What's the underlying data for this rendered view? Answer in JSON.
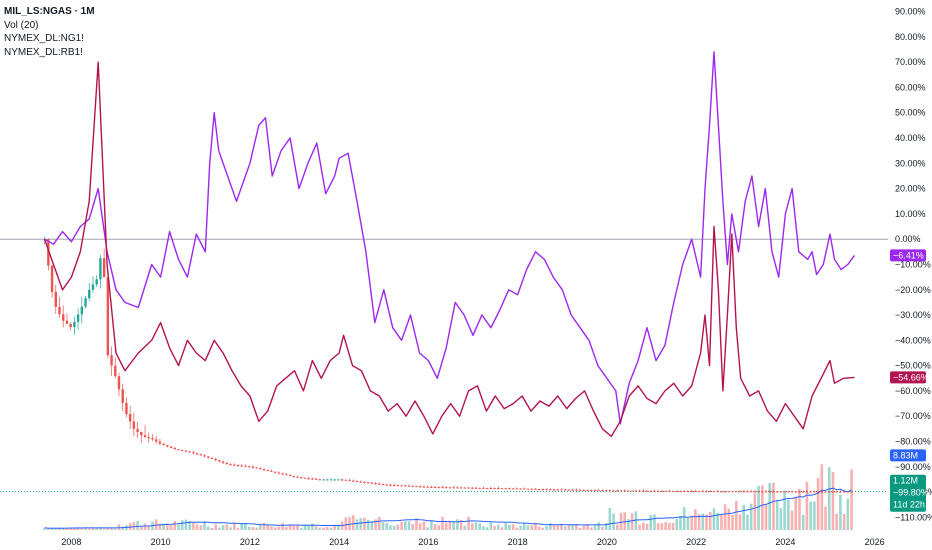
{
  "legend": {
    "symbol": "MIL_LS:NGAS · 1M",
    "volume": "Vol (20)",
    "comparisons": [
      "NYMEX_DL:NG1!",
      "NYMEX_DL:RB1!"
    ]
  },
  "colors": {
    "ng1_series": "#9c27f0",
    "rb1_series": "#b2144f",
    "candle_up": "#26a69a",
    "candle_down": "#ef5350",
    "volume_ma": "#2962ff",
    "volume_badge": "#2962ff",
    "price_badge": "#089981",
    "zero_line": "#9598a1",
    "axis_text": "#131722"
  },
  "chart_data": {
    "type": "line",
    "x_axis": {
      "range": [
        2006.4,
        2026.3
      ],
      "ticks": [
        2008,
        2010,
        2012,
        2014,
        2016,
        2018,
        2020,
        2022,
        2024,
        2026
      ]
    },
    "y_axis": {
      "unit": "%",
      "range": [
        -115,
        93
      ],
      "ticks": [
        90,
        80,
        70,
        60,
        50,
        40,
        30,
        20,
        10,
        0,
        -10,
        -20,
        -30,
        -40,
        -50,
        -60,
        -70,
        -80,
        -90,
        -100,
        -110
      ]
    },
    "tick_labels": [
      "90.00%",
      "80.00%",
      "70.00%",
      "60.00%",
      "50.00%",
      "40.00%",
      "30.00%",
      "20.00%",
      "10.00%",
      "0.00%",
      "−10.00%",
      "−20.00%",
      "−30.00%",
      "−40.00%",
      "−50.00%",
      "−60.00%",
      "−70.00%",
      "−80.00%",
      "−90.00%",
      "−100.00%",
      "−110.00%"
    ],
    "series": [
      {
        "name": "NYMEX_DL:NG1!",
        "last_label": "−6.41%",
        "points": [
          [
            2007.4,
            0
          ],
          [
            2007.6,
            -2
          ],
          [
            2007.8,
            3
          ],
          [
            2008.0,
            -1
          ],
          [
            2008.2,
            5
          ],
          [
            2008.4,
            8
          ],
          [
            2008.6,
            20
          ],
          [
            2008.8,
            -5
          ],
          [
            2009.0,
            -20
          ],
          [
            2009.2,
            -25
          ],
          [
            2009.5,
            -27
          ],
          [
            2009.8,
            -10
          ],
          [
            2010.0,
            -15
          ],
          [
            2010.2,
            3
          ],
          [
            2010.4,
            -8
          ],
          [
            2010.6,
            -15
          ],
          [
            2010.8,
            2
          ],
          [
            2011.0,
            -5
          ],
          [
            2011.1,
            30
          ],
          [
            2011.2,
            50
          ],
          [
            2011.3,
            35
          ],
          [
            2011.5,
            25
          ],
          [
            2011.7,
            15
          ],
          [
            2011.9,
            25
          ],
          [
            2012.0,
            30
          ],
          [
            2012.2,
            45
          ],
          [
            2012.35,
            48
          ],
          [
            2012.5,
            25
          ],
          [
            2012.7,
            35
          ],
          [
            2012.9,
            40
          ],
          [
            2013.1,
            20
          ],
          [
            2013.3,
            30
          ],
          [
            2013.5,
            38
          ],
          [
            2013.7,
            18
          ],
          [
            2013.9,
            25
          ],
          [
            2014.0,
            32
          ],
          [
            2014.2,
            34
          ],
          [
            2014.4,
            15
          ],
          [
            2014.6,
            -5
          ],
          [
            2014.8,
            -33
          ],
          [
            2015.0,
            -20
          ],
          [
            2015.2,
            -35
          ],
          [
            2015.4,
            -40
          ],
          [
            2015.6,
            -30
          ],
          [
            2015.8,
            -45
          ],
          [
            2016.0,
            -48
          ],
          [
            2016.2,
            -55
          ],
          [
            2016.4,
            -43
          ],
          [
            2016.6,
            -25
          ],
          [
            2016.8,
            -30
          ],
          [
            2017.0,
            -38
          ],
          [
            2017.2,
            -30
          ],
          [
            2017.4,
            -35
          ],
          [
            2017.6,
            -28
          ],
          [
            2017.8,
            -20
          ],
          [
            2018.0,
            -22
          ],
          [
            2018.2,
            -12
          ],
          [
            2018.4,
            -5
          ],
          [
            2018.6,
            -8
          ],
          [
            2018.8,
            -15
          ],
          [
            2019.0,
            -20
          ],
          [
            2019.2,
            -30
          ],
          [
            2019.4,
            -35
          ],
          [
            2019.6,
            -40
          ],
          [
            2019.8,
            -50
          ],
          [
            2020.0,
            -55
          ],
          [
            2020.2,
            -60
          ],
          [
            2020.3,
            -73
          ],
          [
            2020.5,
            -57
          ],
          [
            2020.7,
            -48
          ],
          [
            2020.9,
            -35
          ],
          [
            2021.1,
            -48
          ],
          [
            2021.3,
            -42
          ],
          [
            2021.5,
            -25
          ],
          [
            2021.7,
            -10
          ],
          [
            2021.9,
            0
          ],
          [
            2022.1,
            -15
          ],
          [
            2022.2,
            20
          ],
          [
            2022.3,
            45
          ],
          [
            2022.4,
            74
          ],
          [
            2022.5,
            45
          ],
          [
            2022.6,
            15
          ],
          [
            2022.7,
            -10
          ],
          [
            2022.8,
            10
          ],
          [
            2022.95,
            -5
          ],
          [
            2023.1,
            15
          ],
          [
            2023.25,
            25
          ],
          [
            2023.4,
            5
          ],
          [
            2023.55,
            20
          ],
          [
            2023.7,
            -5
          ],
          [
            2023.85,
            -15
          ],
          [
            2024.0,
            10
          ],
          [
            2024.15,
            20
          ],
          [
            2024.3,
            -5
          ],
          [
            2024.5,
            -8
          ],
          [
            2024.6,
            -5
          ],
          [
            2024.7,
            -14
          ],
          [
            2024.85,
            -10
          ],
          [
            2025.0,
            2
          ],
          [
            2025.1,
            -8
          ],
          [
            2025.25,
            -12
          ],
          [
            2025.4,
            -10
          ],
          [
            2025.55,
            -6.41
          ]
        ]
      },
      {
        "name": "NYMEX_DL:RB1!",
        "last_label": "−54.66%",
        "points": [
          [
            2007.4,
            0
          ],
          [
            2007.6,
            -10
          ],
          [
            2007.8,
            -20
          ],
          [
            2008.0,
            -15
          ],
          [
            2008.2,
            -5
          ],
          [
            2008.4,
            15
          ],
          [
            2008.6,
            70
          ],
          [
            2008.8,
            -10
          ],
          [
            2009.0,
            -45
          ],
          [
            2009.2,
            -52
          ],
          [
            2009.5,
            -45
          ],
          [
            2009.8,
            -40
          ],
          [
            2010.0,
            -33
          ],
          [
            2010.2,
            -43
          ],
          [
            2010.4,
            -50
          ],
          [
            2010.6,
            -40
          ],
          [
            2010.8,
            -45
          ],
          [
            2011.0,
            -48
          ],
          [
            2011.2,
            -40
          ],
          [
            2011.4,
            -45
          ],
          [
            2011.6,
            -52
          ],
          [
            2011.8,
            -58
          ],
          [
            2012.0,
            -62
          ],
          [
            2012.2,
            -72
          ],
          [
            2012.4,
            -68
          ],
          [
            2012.6,
            -58
          ],
          [
            2012.8,
            -55
          ],
          [
            2013.0,
            -52
          ],
          [
            2013.2,
            -60
          ],
          [
            2013.4,
            -48
          ],
          [
            2013.6,
            -55
          ],
          [
            2013.8,
            -48
          ],
          [
            2014.0,
            -45
          ],
          [
            2014.1,
            -38
          ],
          [
            2014.3,
            -50
          ],
          [
            2014.5,
            -52
          ],
          [
            2014.7,
            -60
          ],
          [
            2014.9,
            -62
          ],
          [
            2015.1,
            -68
          ],
          [
            2015.3,
            -65
          ],
          [
            2015.5,
            -70
          ],
          [
            2015.7,
            -64
          ],
          [
            2015.9,
            -70
          ],
          [
            2016.1,
            -77
          ],
          [
            2016.3,
            -70
          ],
          [
            2016.5,
            -65
          ],
          [
            2016.7,
            -70
          ],
          [
            2016.9,
            -60
          ],
          [
            2017.1,
            -58
          ],
          [
            2017.3,
            -68
          ],
          [
            2017.5,
            -62
          ],
          [
            2017.7,
            -67
          ],
          [
            2017.9,
            -65
          ],
          [
            2018.1,
            -62
          ],
          [
            2018.3,
            -68
          ],
          [
            2018.5,
            -64
          ],
          [
            2018.7,
            -66
          ],
          [
            2018.9,
            -62
          ],
          [
            2019.1,
            -67
          ],
          [
            2019.3,
            -63
          ],
          [
            2019.5,
            -60
          ],
          [
            2019.7,
            -68
          ],
          [
            2019.9,
            -75
          ],
          [
            2020.1,
            -78
          ],
          [
            2020.3,
            -72
          ],
          [
            2020.5,
            -62
          ],
          [
            2020.7,
            -58
          ],
          [
            2020.9,
            -63
          ],
          [
            2021.1,
            -65
          ],
          [
            2021.3,
            -60
          ],
          [
            2021.5,
            -57
          ],
          [
            2021.7,
            -62
          ],
          [
            2021.9,
            -58
          ],
          [
            2022.1,
            -45
          ],
          [
            2022.2,
            -30
          ],
          [
            2022.3,
            -50
          ],
          [
            2022.4,
            5
          ],
          [
            2022.5,
            -20
          ],
          [
            2022.6,
            -60
          ],
          [
            2022.7,
            -30
          ],
          [
            2022.8,
            2
          ],
          [
            2022.9,
            -35
          ],
          [
            2023.0,
            -55
          ],
          [
            2023.2,
            -62
          ],
          [
            2023.4,
            -60
          ],
          [
            2023.6,
            -68
          ],
          [
            2023.8,
            -72
          ],
          [
            2024.0,
            -65
          ],
          [
            2024.2,
            -70
          ],
          [
            2024.4,
            -75
          ],
          [
            2024.6,
            -62
          ],
          [
            2024.8,
            -55
          ],
          [
            2025.0,
            -48
          ],
          [
            2025.1,
            -57
          ],
          [
            2025.3,
            -55
          ],
          [
            2025.55,
            -54.66
          ]
        ]
      },
      {
        "name": "MIL_LS:NGAS",
        "style": "candles",
        "last_label": "−99.80%",
        "points": [
          [
            2007.4,
            0
          ],
          [
            2007.6,
            -25
          ],
          [
            2007.8,
            -32
          ],
          [
            2008.0,
            -35
          ],
          [
            2008.2,
            -28
          ],
          [
            2008.4,
            -20
          ],
          [
            2008.6,
            -15
          ],
          [
            2008.7,
            0
          ],
          [
            2008.8,
            -45
          ],
          [
            2009.0,
            -55
          ],
          [
            2009.2,
            -68
          ],
          [
            2009.4,
            -75
          ],
          [
            2009.6,
            -78
          ],
          [
            2009.8,
            -79
          ],
          [
            2010.0,
            -81
          ],
          [
            2010.3,
            -83
          ],
          [
            2010.6,
            -84
          ],
          [
            2011.0,
            -86
          ],
          [
            2011.5,
            -89
          ],
          [
            2012.0,
            -90
          ],
          [
            2012.5,
            -92
          ],
          [
            2013.0,
            -94
          ],
          [
            2013.5,
            -95
          ],
          [
            2014.0,
            -95
          ],
          [
            2015.0,
            -97
          ],
          [
            2016.0,
            -98
          ],
          [
            2017.0,
            -98.3
          ],
          [
            2018.0,
            -98.6
          ],
          [
            2019.0,
            -99.0
          ],
          [
            2020.0,
            -99.3
          ],
          [
            2021.0,
            -99.5
          ],
          [
            2022.0,
            -99.6
          ],
          [
            2023.0,
            -99.7
          ],
          [
            2024.0,
            -99.75
          ],
          [
            2025.55,
            -99.8
          ]
        ]
      }
    ],
    "volume": {
      "last_label": "8.83M"
    },
    "price_badge": {
      "value": "1.12M",
      "change": "−99.80%",
      "countdown": "11d 22h"
    }
  }
}
